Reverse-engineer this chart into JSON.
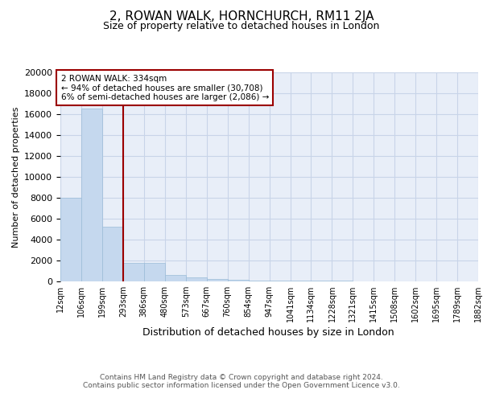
{
  "title": "2, ROWAN WALK, HORNCHURCH, RM11 2JA",
  "subtitle": "Size of property relative to detached houses in London",
  "xlabel": "Distribution of detached houses by size in London",
  "ylabel": "Number of detached properties",
  "bar_color": "#c5d8ee",
  "bar_edge_color": "#9bbcd8",
  "grid_color": "#c8d4e8",
  "background_color": "#e8eef8",
  "vline_color": "#9b0000",
  "vline_x_bin_index": 3,
  "annotation_box_color": "#9b0000",
  "annotation_line1": "2 ROWAN WALK: 334sqm",
  "annotation_line2": "← 94% of detached houses are smaller (30,708)",
  "annotation_line3": "6% of semi-detached houses are larger (2,086) →",
  "bins": [
    12,
    106,
    199,
    293,
    386,
    480,
    573,
    667,
    760,
    854,
    947,
    1041,
    1134,
    1228,
    1321,
    1415,
    1508,
    1602,
    1695,
    1789,
    1882
  ],
  "values": [
    8000,
    16500,
    5200,
    1800,
    1750,
    650,
    350,
    200,
    150,
    100,
    100,
    75,
    50,
    50,
    25,
    25,
    25,
    25,
    25,
    25
  ],
  "ylim": [
    0,
    20000
  ],
  "yticks": [
    0,
    2000,
    4000,
    6000,
    8000,
    10000,
    12000,
    14000,
    16000,
    18000,
    20000
  ],
  "footer_text": "Contains HM Land Registry data © Crown copyright and database right 2024.\nContains public sector information licensed under the Open Government Licence v3.0.",
  "tick_labels": [
    "12sqm",
    "106sqm",
    "199sqm",
    "293sqm",
    "386sqm",
    "480sqm",
    "573sqm",
    "667sqm",
    "760sqm",
    "854sqm",
    "947sqm",
    "1041sqm",
    "1134sqm",
    "1228sqm",
    "1321sqm",
    "1415sqm",
    "1508sqm",
    "1602sqm",
    "1695sqm",
    "1789sqm",
    "1882sqm"
  ]
}
